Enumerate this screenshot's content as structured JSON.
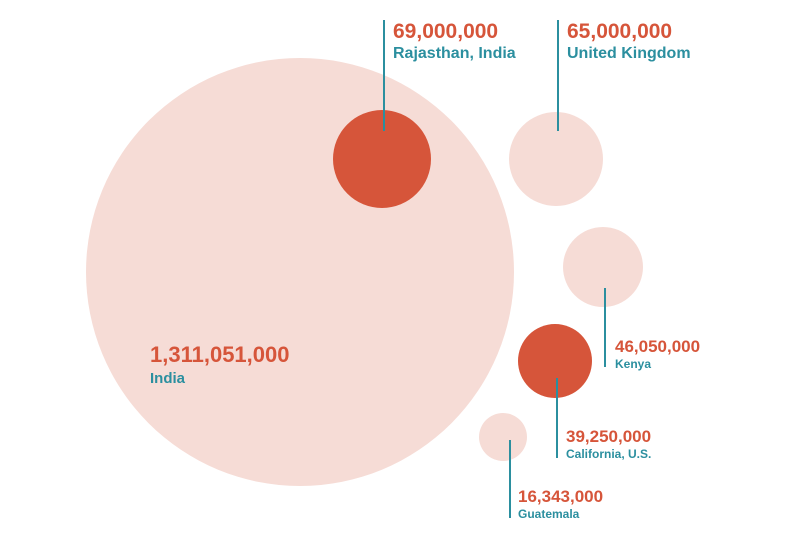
{
  "chart_data": {
    "type": "bubble",
    "title": "",
    "colors": {
      "country": "#f6dcd6",
      "state": "#d6553a",
      "value_text": "#d6553a",
      "label_text": "#2b8f9f",
      "leader_line": "#2b8f9f"
    },
    "bubbles": [
      {
        "id": "india",
        "name": "India",
        "value": 1311051000,
        "value_label": "1,311,051,000",
        "kind": "country"
      },
      {
        "id": "rajasthan",
        "name": "Rajasthan, India",
        "value": 69000000,
        "value_label": "69,000,000",
        "kind": "state"
      },
      {
        "id": "uk",
        "name": "United Kingdom",
        "value": 65000000,
        "value_label": "65,000,000",
        "kind": "country"
      },
      {
        "id": "kenya",
        "name": "Kenya",
        "value": 46050000,
        "value_label": "46,050,000",
        "kind": "country"
      },
      {
        "id": "california",
        "name": "California, U.S.",
        "value": 39250000,
        "value_label": "39,250,000",
        "kind": "state"
      },
      {
        "id": "guatemala",
        "name": "Guatemala",
        "value": 16343000,
        "value_label": "16,343,000",
        "kind": "country"
      }
    ]
  }
}
